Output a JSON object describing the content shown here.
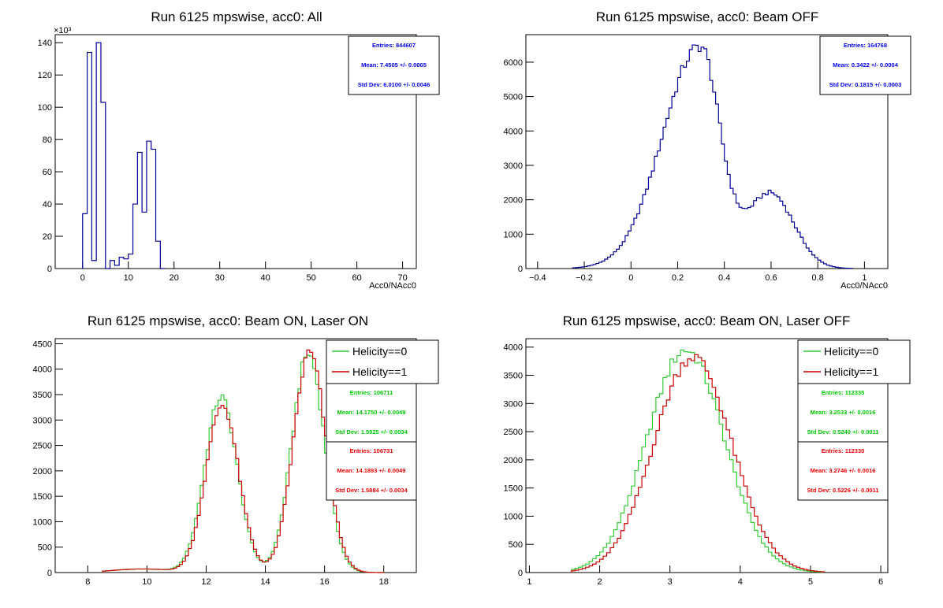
{
  "chart_data": [
    {
      "type": "histogram",
      "title": "Run 6125 mpswise, acc0: All",
      "xlabel": "Acc0/NAcc0",
      "ylabel": "",
      "y_multiplier_label": "×10³",
      "xlim": [
        -6,
        73
      ],
      "ylim": [
        0,
        145000
      ],
      "xticks": [
        0,
        10,
        20,
        30,
        40,
        50,
        60,
        70
      ],
      "yticks": [
        0,
        20000,
        40000,
        60000,
        80000,
        100000,
        120000,
        140000
      ],
      "ytick_labels": [
        "0",
        "20",
        "40",
        "60",
        "80",
        "100",
        "120",
        "140"
      ],
      "bin_width": 1,
      "series": [
        {
          "color": "#000099",
          "x": [
            0,
            1,
            2,
            3,
            4,
            5,
            6,
            7,
            8,
            9,
            10,
            11,
            12,
            13,
            14,
            15,
            16,
            17
          ],
          "y": [
            34000,
            134000,
            5000,
            140000,
            103000,
            0,
            5000,
            2000,
            7000,
            6000,
            9000,
            40000,
            72000,
            35000,
            79000,
            74000,
            17000,
            0
          ]
        }
      ],
      "stats": [
        {
          "color": "#0000ee",
          "entries": "Entries: 844607",
          "mean": "Mean: 7.4505 +/- 0.0065",
          "std": "Std Dev: 6.0100 +/- 0.0046"
        }
      ]
    },
    {
      "type": "histogram",
      "title": "Run 6125 mpswise, acc0: Beam OFF",
      "xlabel": "Acc0/NAcc0",
      "ylabel": "",
      "xlim": [
        -0.45,
        1.1
      ],
      "ylim": [
        0,
        6800
      ],
      "xticks": [
        -0.4,
        -0.2,
        0,
        0.2,
        0.4,
        0.6,
        0.8,
        1
      ],
      "xtick_labels": [
        "−0.4",
        "−0.2",
        "0",
        "0.2",
        "0.4",
        "0.6",
        "0.8",
        "1"
      ],
      "yticks": [
        0,
        1000,
        2000,
        3000,
        4000,
        5000,
        6000
      ],
      "bin_width": 0.0125,
      "peaks": [
        [
          0.29,
          6450
        ],
        [
          0.59,
          2400
        ]
      ],
      "range": [
        -0.25,
        0.95
      ],
      "series": [
        {
          "color": "#000099"
        }
      ],
      "stats": [
        {
          "color": "#0000ee",
          "entries": "Entries: 164768",
          "mean": "Mean: 0.3422 +/- 0.0004",
          "std": "Std Dev: 0.1815 +/- 0.0003"
        }
      ]
    },
    {
      "type": "histogram",
      "title": "Run 6125 mpswise, acc0: Beam ON, Laser ON",
      "xlabel": "",
      "ylabel": "",
      "xlim": [
        6.9,
        19.1
      ],
      "ylim": [
        0,
        4600
      ],
      "xticks": [
        8,
        10,
        12,
        14,
        16,
        18
      ],
      "yticks": [
        0,
        500,
        1000,
        1500,
        2000,
        2500,
        3000,
        3500,
        4000,
        4500
      ],
      "bin_width": 0.1,
      "range": [
        8.5,
        18.0
      ],
      "legend": [
        {
          "label": "Helicity==0",
          "color": "#33cc33"
        },
        {
          "label": "Helicity==1",
          "color": "#cc0000"
        }
      ],
      "series": [
        {
          "name": "Helicity==0",
          "color": "#33cc33",
          "peaks": [
            [
              12.45,
              3450
            ],
            [
              15.4,
              4300
            ]
          ],
          "floor": 70
        },
        {
          "name": "Helicity==1",
          "color": "#cc0000",
          "peaks": [
            [
              12.5,
              3300
            ],
            [
              15.45,
              4320
            ]
          ],
          "floor": 70
        }
      ],
      "stats": [
        {
          "color": "#00cc00",
          "entries": "Entries: 106711",
          "mean": "Mean: 14.1750 +/- 0.0049",
          "std": "Std Dev: 1.5925 +/- 0.0034"
        },
        {
          "color": "#ee0000",
          "entries": "Entries: 106731",
          "mean": "Mean: 14.1893 +/- 0.0049",
          "std": "Std Dev: 1.5884 +/- 0.0034"
        }
      ]
    },
    {
      "type": "histogram",
      "title": "Run 6125 mpswise, acc0: Beam ON, Laser OFF",
      "xlabel": "",
      "ylabel": "",
      "xlim": [
        0.95,
        6.1
      ],
      "ylim": [
        0,
        4150
      ],
      "xticks": [
        1,
        2,
        3,
        4,
        5,
        6
      ],
      "yticks": [
        0,
        500,
        1000,
        1500,
        2000,
        2500,
        3000,
        3500,
        4000
      ],
      "bin_width": 0.05,
      "range": [
        1.6,
        5.2
      ],
      "legend": [
        {
          "label": "Helicity==0",
          "color": "#33cc33"
        },
        {
          "label": "Helicity==1",
          "color": "#cc0000"
        }
      ],
      "series": [
        {
          "name": "Helicity==0",
          "color": "#33cc33",
          "peaks": [
            [
              3.2,
              3950
            ]
          ]
        },
        {
          "name": "Helicity==1",
          "color": "#cc0000",
          "peaks": [
            [
              3.3,
              3830
            ]
          ]
        }
      ],
      "stats": [
        {
          "color": "#00cc00",
          "entries": "Entries: 112335",
          "mean": "Mean: 3.2533 +/- 0.0016",
          "std": "Std Dev: 0.5240 +/- 0.0011"
        },
        {
          "color": "#ee0000",
          "entries": "Entries: 112330",
          "mean": "Mean: 3.2746 +/- 0.0016",
          "std": "Std Dev: 0.5226 +/- 0.0011"
        }
      ]
    }
  ]
}
